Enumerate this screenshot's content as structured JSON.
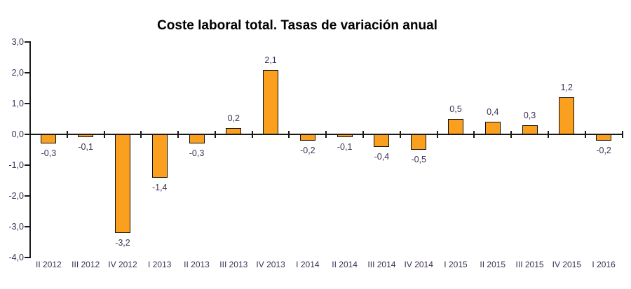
{
  "title": "Coste laboral total. Tasas de variación anual",
  "colors": {
    "bar_fill": "#faa01e",
    "bar_border": "#0d0d0d",
    "axis": "#1a1a1a",
    "tick_label": "#3e3154",
    "title": "#000000",
    "background": "#ffffff"
  },
  "chart_data": {
    "type": "bar",
    "title": "Coste laboral total. Tasas de variación anual",
    "categories": [
      "II 2012",
      "III 2012",
      "IV 2012",
      "I 2013",
      "II 2013",
      "III 2013",
      "IV 2013",
      "I 2014",
      "II 2014",
      "III 2014",
      "IV 2014",
      "I 2015",
      "II 2015",
      "III 2015",
      "IV 2015",
      "I 2016"
    ],
    "values": [
      -0.3,
      -0.1,
      -3.2,
      -1.4,
      -0.3,
      0.2,
      2.1,
      -0.2,
      -0.1,
      -0.4,
      -0.5,
      0.5,
      0.4,
      0.3,
      1.2,
      -0.2
    ],
    "value_labels": [
      "-0,3",
      "-0,1",
      "-3,2",
      "-1,4",
      "-0,3",
      "0,2",
      "2,1",
      "-0,2",
      "-0,1",
      "-0,4",
      "-0,5",
      "0,5",
      "0,4",
      "0,3",
      "1,2",
      "-0,2"
    ],
    "xlabel": "",
    "ylabel": "",
    "ylim": [
      -4.0,
      3.0
    ],
    "ytick_values": [
      3,
      2,
      1,
      0,
      -1,
      -2,
      -3,
      -4
    ],
    "ytick_labels": [
      "3,0",
      "2,0",
      "1,0",
      "0,0",
      "-1,0",
      "-2,0",
      "-3,0",
      "-4,0"
    ],
    "grid": false,
    "legend": null,
    "decimal_separator": ",",
    "series_name": "Coste laboral total"
  }
}
